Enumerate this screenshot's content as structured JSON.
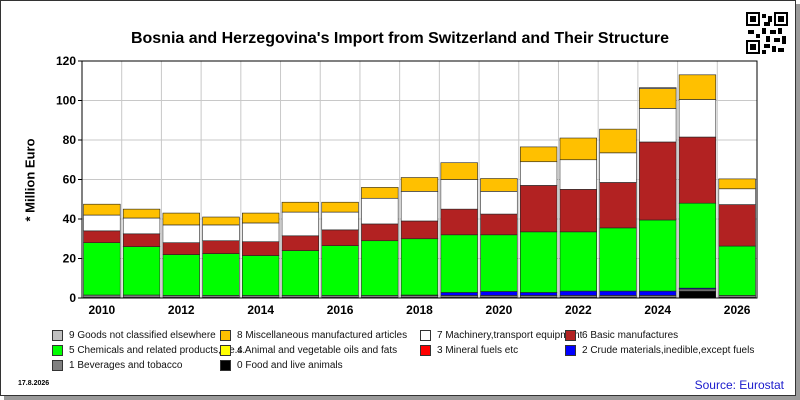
{
  "title": "Bosnia and Herzegovina's Import from Switzerland and Their Structure",
  "date_stamp": "17.8.2026",
  "source": "Source: Eurostat",
  "chart_data": {
    "type": "bar",
    "stacked": true,
    "ylabel": "* Million Euro",
    "ylim": [
      0,
      120
    ],
    "yticks": [
      0,
      20,
      40,
      60,
      80,
      100,
      120
    ],
    "x": [
      2010,
      2011,
      2012,
      2013,
      2014,
      2015,
      2016,
      2017,
      2018,
      2019,
      2020,
      2021,
      2022,
      2023,
      2024,
      2025,
      2026
    ],
    "xtick_labels": [
      "2010",
      "2012",
      "2014",
      "2016",
      "2018",
      "2020",
      "2022",
      "2024",
      "2026"
    ],
    "grid": true,
    "series": [
      {
        "name": "0 Food and live animals",
        "color": "#000000",
        "values": [
          0.3,
          0.3,
          0.3,
          0.3,
          0.3,
          0.3,
          0.3,
          0.3,
          0.3,
          0.3,
          0.3,
          0.3,
          0.3,
          0.3,
          0.3,
          3.5,
          0.3
        ]
      },
      {
        "name": "1 Beverages and tobacco",
        "color": "#808080",
        "values": [
          1.2,
          1.2,
          1.0,
          1.0,
          1.0,
          1.0,
          1.0,
          1.0,
          1.0,
          1.0,
          1.0,
          1.0,
          1.0,
          1.0,
          1.0,
          1.0,
          1.0
        ]
      },
      {
        "name": "2 Crude materials,inedible,except fuels",
        "color": "#0000ff",
        "values": [
          0,
          0,
          0,
          0,
          0,
          0,
          0,
          0,
          0.2,
          1.5,
          2.0,
          1.5,
          2.2,
          2.2,
          2.2,
          0.5,
          0
        ]
      },
      {
        "name": "3 Mineral fuels etc",
        "color": "#ff0000",
        "values": [
          0,
          0,
          0,
          0,
          0,
          0,
          0,
          0,
          0,
          0,
          0,
          0,
          0,
          0,
          0,
          0,
          0
        ]
      },
      {
        "name": "4 Animal and vegetable oils and fats",
        "color": "#ffff00",
        "values": [
          0,
          0,
          0,
          0,
          0,
          0,
          0,
          0,
          0,
          0,
          0,
          0,
          0,
          0,
          0,
          0,
          0
        ]
      },
      {
        "name": "5 Chemicals and related products,n.e.s.",
        "color": "#00ff00",
        "values": [
          26.5,
          24.5,
          20.7,
          21.2,
          20.2,
          22.7,
          25.2,
          27.7,
          28.5,
          29.2,
          28.7,
          30.7,
          30.0,
          32.0,
          36.0,
          43.0,
          25.0
        ]
      },
      {
        "name": "6 Basic manufactures",
        "color": "#b22222",
        "values": [
          6.0,
          6.5,
          6.0,
          6.5,
          7.0,
          7.5,
          8.0,
          8.5,
          9.0,
          13.0,
          10.5,
          23.5,
          21.5,
          23.0,
          39.5,
          33.5,
          21.0
        ]
      },
      {
        "name": "7 Machinery,transport equipment",
        "color": "#ffffff",
        "values": [
          8.0,
          8.0,
          9.0,
          8.0,
          9.5,
          12.0,
          9.0,
          13.0,
          15.0,
          15.0,
          11.5,
          12.0,
          15.0,
          15.0,
          17.0,
          19.0,
          8.0
        ]
      },
      {
        "name": "8 Miscellaneous manufactured articles",
        "color": "#ffc000",
        "values": [
          5.5,
          4.5,
          6.0,
          4.0,
          5.0,
          5.0,
          5.0,
          5.5,
          7.0,
          8.5,
          6.5,
          7.5,
          11.0,
          12.0,
          10.0,
          12.5,
          5.0
        ]
      },
      {
        "name": "9 Goods not classified elsewhere",
        "color": "#c0c0c0",
        "values": [
          0,
          0,
          0,
          0,
          0,
          0,
          0,
          0,
          0,
          0,
          0,
          0,
          0,
          0,
          0.5,
          0,
          0
        ]
      }
    ],
    "legend_order": [
      9,
      8,
      7,
      6,
      5,
      4,
      3,
      2,
      1,
      0
    ],
    "legend_placement": "bottom"
  }
}
